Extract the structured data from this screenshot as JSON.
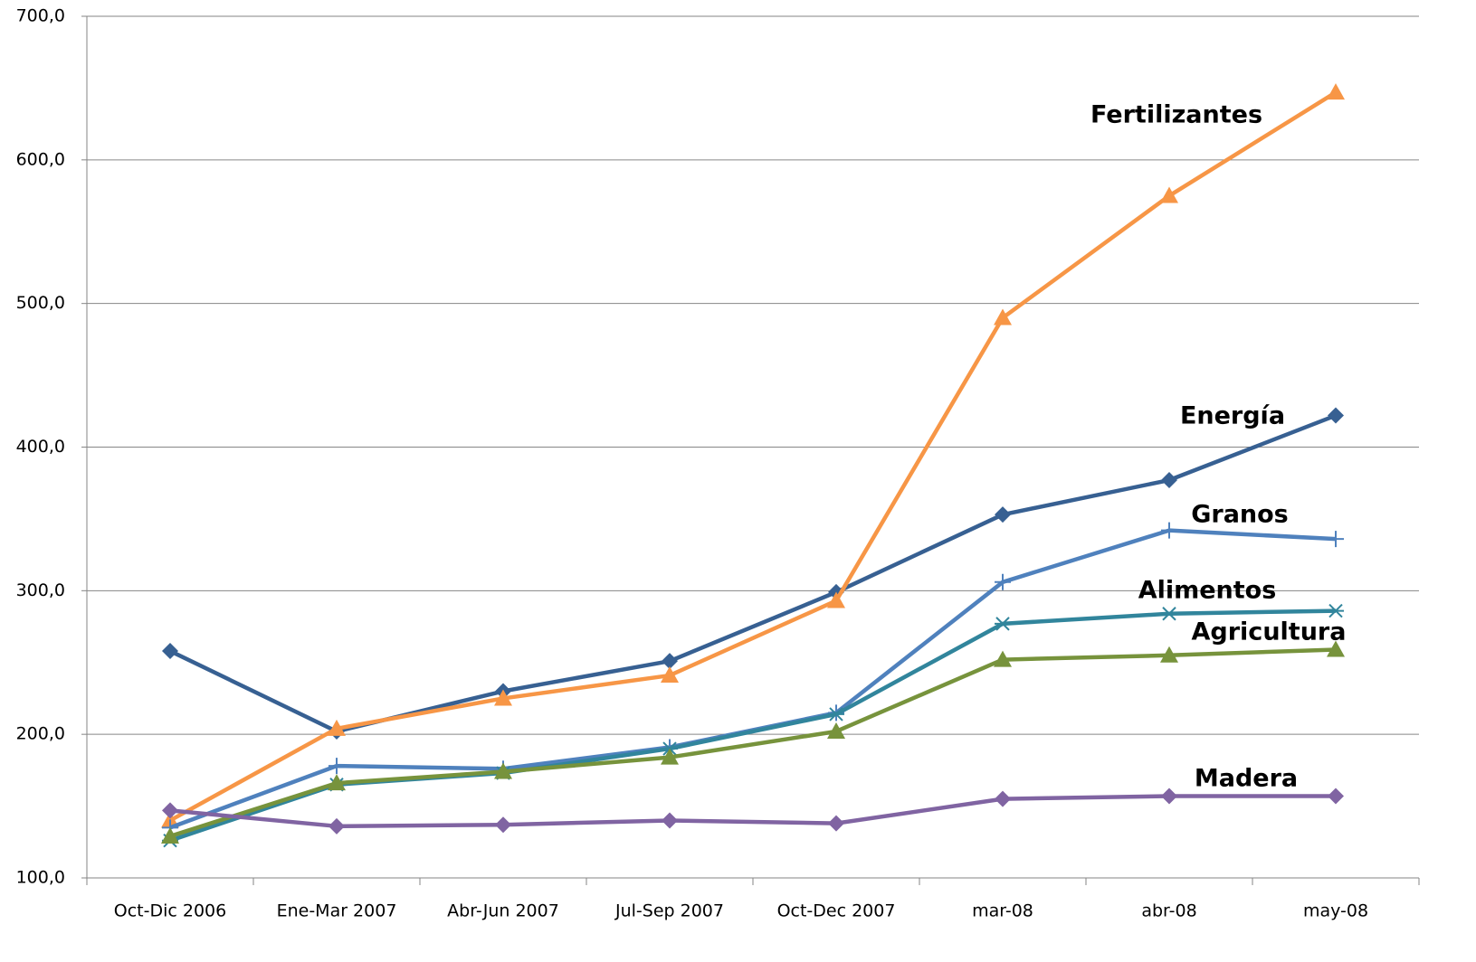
{
  "chart_data": {
    "type": "line",
    "categories": [
      "Oct-Dic 2006",
      "Ene-Mar 2007",
      "Abr-Jun 2007",
      "Jul-Sep 2007",
      "Oct-Dec 2007",
      "mar-08",
      "abr-08",
      "may-08"
    ],
    "ylim": [
      100,
      700
    ],
    "yticks": [
      {
        "value": 100,
        "label": "100,0"
      },
      {
        "value": 200,
        "label": "200,0"
      },
      {
        "value": 300,
        "label": "300,0"
      },
      {
        "value": 400,
        "label": "400,0"
      },
      {
        "value": 500,
        "label": "500,0"
      },
      {
        "value": 600,
        "label": "600,0"
      },
      {
        "value": 700,
        "label": "700,0"
      }
    ],
    "grid": true,
    "series": [
      {
        "name": "Energía",
        "color": "#376092",
        "marker": "diamond",
        "values": [
          258,
          202,
          230,
          251,
          299,
          353,
          377,
          422
        ]
      },
      {
        "name": "Fertilizantes",
        "color": "#f79646",
        "marker": "triangle",
        "values": [
          140,
          204,
          225,
          241,
          293,
          490,
          575,
          647
        ]
      },
      {
        "name": "Granos",
        "color": "#4f81bd",
        "marker": "plus",
        "values": [
          135,
          178,
          176,
          191,
          215,
          306,
          342,
          336
        ]
      },
      {
        "name": "Alimentos",
        "color": "#31859c",
        "marker": "asterisk",
        "values": [
          126,
          165,
          173,
          190,
          214,
          277,
          284,
          286
        ]
      },
      {
        "name": "Agricultura",
        "color": "#77933c",
        "marker": "triangle",
        "values": [
          129,
          166,
          174,
          184,
          202,
          252,
          255,
          259
        ]
      },
      {
        "name": "Madera",
        "color": "#8064a2",
        "marker": "diamond",
        "values": [
          147,
          136,
          137,
          140,
          138,
          155,
          157,
          157
        ]
      }
    ]
  }
}
